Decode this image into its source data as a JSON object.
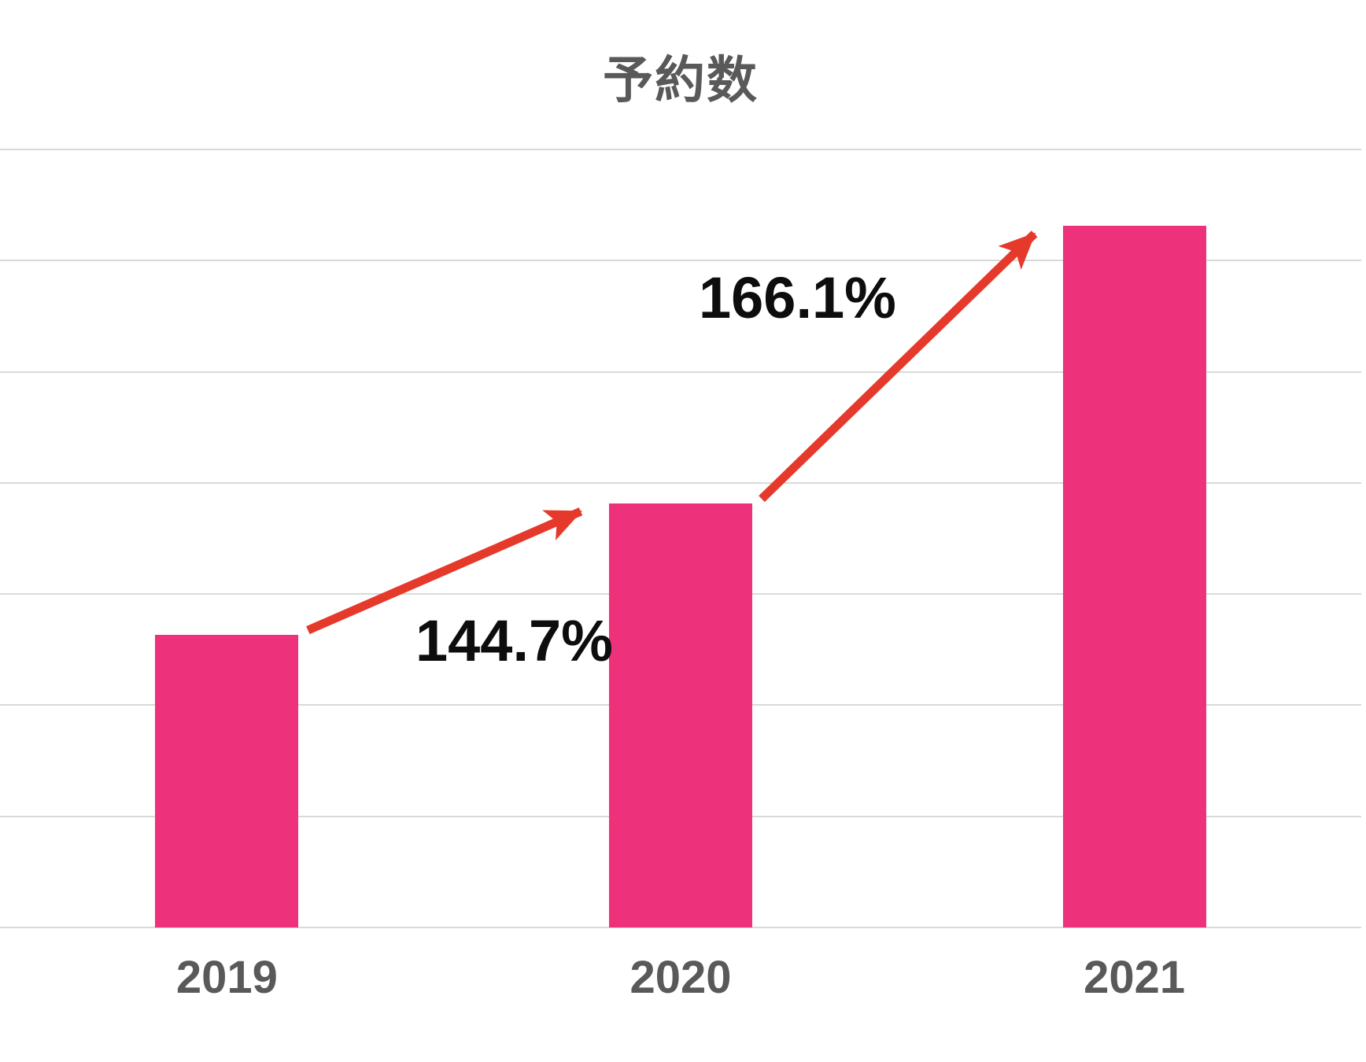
{
  "page": {
    "background": "#FFFFFF"
  },
  "title": {
    "text": "予約数",
    "color": "#595959"
  },
  "chart_data": {
    "type": "bar",
    "title": "予約数",
    "categories": [
      "2019",
      "2020",
      "2021"
    ],
    "series": [
      {
        "name": "予約数",
        "values_relative_2019_100": [
          100,
          144.7,
          240.4
        ],
        "values_gridline_units": [
          2.632,
          3.814,
          6.312
        ]
      }
    ],
    "annotations": [
      {
        "label": "144.7%",
        "type": "growth-arrow",
        "from": "2019",
        "to": "2020"
      },
      {
        "label": "166.1%",
        "type": "growth-arrow",
        "from": "2020",
        "to": "2021"
      }
    ],
    "xlabel": "",
    "ylabel": "",
    "y_axis": {
      "tick_labels_visible": false,
      "min_units": 0,
      "max_units": 7,
      "gridline_count": 8
    },
    "legend_position": "none",
    "grid": "horizontal",
    "colors": {
      "bar": "#ED317B",
      "arrow": "#E5392B",
      "gridline": "#D9D9D9",
      "category_label": "#595959",
      "annotation_text": "#0D0D0D"
    }
  }
}
